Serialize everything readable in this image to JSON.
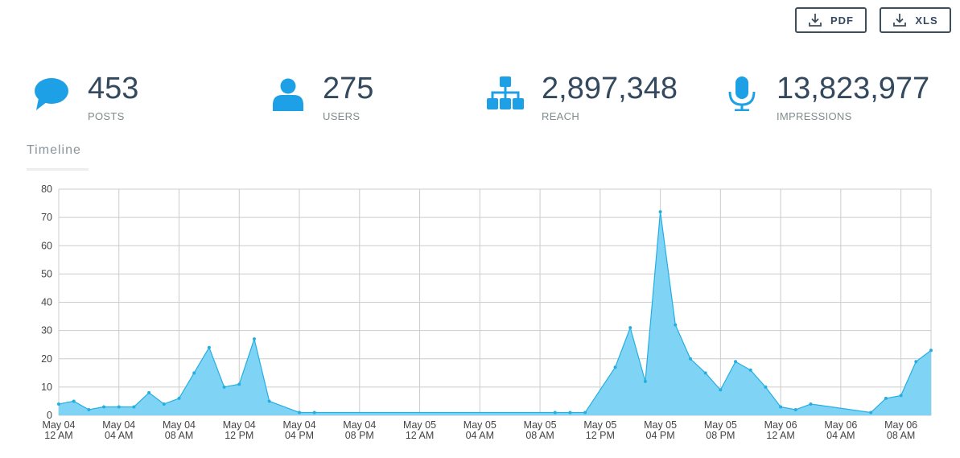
{
  "toolbar": {
    "pdf_label": "PDF",
    "xls_label": "XLS",
    "pdf_icon": "download-icon",
    "xls_icon": "download-icon"
  },
  "stats": {
    "posts": {
      "value": "453",
      "label": "POSTS",
      "icon": "comment-icon"
    },
    "users": {
      "value": "275",
      "label": "USERS",
      "icon": "user-icon"
    },
    "reach": {
      "value": "2,897,348",
      "label": "REACH",
      "icon": "sitemap-icon"
    },
    "impressions": {
      "value": "13,823,977",
      "label": "IMPRESSIONS",
      "icon": "microphone-icon"
    }
  },
  "colors": {
    "accent": "#1ea0e6",
    "area_fill": "#7fd4f6",
    "area_line": "#25aee0",
    "text_dark": "#34495e",
    "grid": "#cccccc"
  },
  "tabs": {
    "timeline": "Timeline"
  },
  "chart_data": {
    "type": "area",
    "title": "",
    "xlabel": "",
    "ylabel": "",
    "ylim": [
      0,
      80
    ],
    "yticks": [
      0,
      10,
      20,
      30,
      40,
      50,
      60,
      70,
      80
    ],
    "grid": true,
    "legend": "none",
    "xrange_hours": [
      0,
      58
    ],
    "xticks": [
      {
        "h": 0,
        "l1": "May 04",
        "l2": "12 AM"
      },
      {
        "h": 4,
        "l1": "May 04",
        "l2": "04 AM"
      },
      {
        "h": 8,
        "l1": "May 04",
        "l2": "08 AM"
      },
      {
        "h": 12,
        "l1": "May 04",
        "l2": "12 PM"
      },
      {
        "h": 16,
        "l1": "May 04",
        "l2": "04 PM"
      },
      {
        "h": 20,
        "l1": "May 04",
        "l2": "08 PM"
      },
      {
        "h": 24,
        "l1": "May 05",
        "l2": "12 AM"
      },
      {
        "h": 28,
        "l1": "May 05",
        "l2": "04 AM"
      },
      {
        "h": 32,
        "l1": "May 05",
        "l2": "08 AM"
      },
      {
        "h": 36,
        "l1": "May 05",
        "l2": "12 PM"
      },
      {
        "h": 40,
        "l1": "May 05",
        "l2": "04 PM"
      },
      {
        "h": 44,
        "l1": "May 05",
        "l2": "08 PM"
      },
      {
        "h": 48,
        "l1": "May 06",
        "l2": "12 AM"
      },
      {
        "h": 52,
        "l1": "May 06",
        "l2": "04 AM"
      },
      {
        "h": 56,
        "l1": "May 06",
        "l2": "08 AM"
      }
    ],
    "series": [
      {
        "points": [
          [
            0,
            4
          ],
          [
            1,
            5
          ],
          [
            2,
            2
          ],
          [
            3,
            3
          ],
          [
            4,
            3
          ],
          [
            5,
            3
          ],
          [
            6,
            8
          ],
          [
            7,
            4
          ],
          [
            8,
            6
          ],
          [
            9,
            15
          ],
          [
            10,
            24
          ],
          [
            11,
            10
          ],
          [
            12,
            11
          ],
          [
            13,
            27
          ],
          [
            14,
            5
          ],
          [
            16,
            1
          ],
          [
            17,
            1
          ],
          [
            33,
            1
          ],
          [
            34,
            1
          ],
          [
            35,
            1
          ],
          [
            37,
            17
          ],
          [
            38,
            31
          ],
          [
            39,
            12
          ],
          [
            40,
            72
          ],
          [
            41,
            32
          ],
          [
            42,
            20
          ],
          [
            43,
            15
          ],
          [
            44,
            9
          ],
          [
            45,
            19
          ],
          [
            46,
            16
          ],
          [
            47,
            10
          ],
          [
            48,
            3
          ],
          [
            49,
            2
          ],
          [
            50,
            4
          ],
          [
            54,
            1
          ],
          [
            55,
            6
          ],
          [
            56,
            7
          ],
          [
            57,
            19
          ],
          [
            58,
            23
          ]
        ]
      }
    ]
  }
}
